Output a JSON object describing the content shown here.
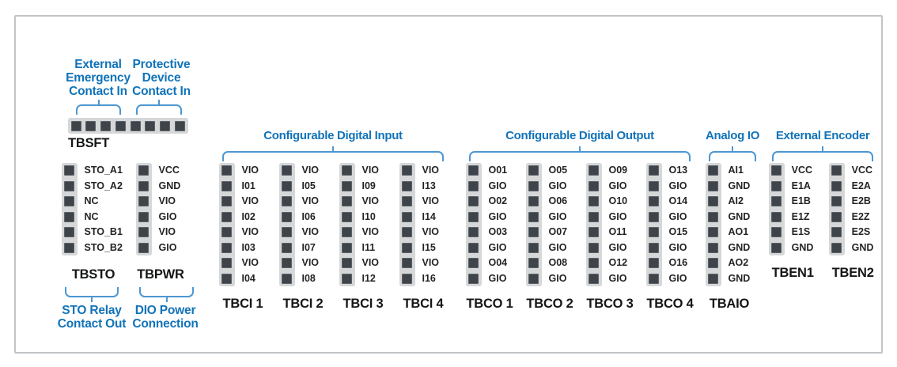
{
  "colors": {
    "accent_text": "#1173b9",
    "bracket": "#4e97d1",
    "pin": "#3e4449",
    "pin_border": "#5d6368",
    "strip": "#d6d7d8",
    "frame_border": "#c2c5c7",
    "name_text": "#141617"
  },
  "tbsft": {
    "name": "TBSFT",
    "pin_count": 8,
    "bracket_groups": [
      {
        "label": "External\nEmergency\nContact In"
      },
      {
        "label": "Protective\nDevice\nContact In"
      }
    ]
  },
  "side_blocks": [
    {
      "name": "TBSTO",
      "pins": [
        "STO_A1",
        "STO_A2",
        "NC",
        "NC",
        "STO_B1",
        "STO_B2"
      ],
      "bottom_label": "STO Relay\nContact Out"
    },
    {
      "name": "TBPWR",
      "pins": [
        "VCC",
        "GND",
        "VIO",
        "GIO",
        "VIO",
        "GIO"
      ],
      "bottom_label": "DIO Power\nConnection"
    }
  ],
  "groups": [
    {
      "title": "Configurable Digital Input",
      "blocks": [
        {
          "name": "TBCI 1",
          "pins": [
            "VIO",
            "I01",
            "VIO",
            "I02",
            "VIO",
            "I03",
            "VIO",
            "I04"
          ]
        },
        {
          "name": "TBCI 2",
          "pins": [
            "VIO",
            "I05",
            "VIO",
            "I06",
            "VIO",
            "I07",
            "VIO",
            "I08"
          ]
        },
        {
          "name": "TBCI 3",
          "pins": [
            "VIO",
            "I09",
            "VIO",
            "I10",
            "VIO",
            "I11",
            "VIO",
            "I12"
          ]
        },
        {
          "name": "TBCI 4",
          "pins": [
            "VIO",
            "I13",
            "VIO",
            "I14",
            "VIO",
            "I15",
            "VIO",
            "I16"
          ]
        }
      ]
    },
    {
      "title": "Configurable Digital Output",
      "blocks": [
        {
          "name": "TBCO 1",
          "pins": [
            "O01",
            "GIO",
            "O02",
            "GIO",
            "O03",
            "GIO",
            "O04",
            "GIO"
          ]
        },
        {
          "name": "TBCO 2",
          "pins": [
            "O05",
            "GIO",
            "O06",
            "GIO",
            "O07",
            "GIO",
            "O08",
            "GIO"
          ]
        },
        {
          "name": "TBCO 3",
          "pins": [
            "O09",
            "GIO",
            "O10",
            "GIO",
            "O11",
            "GIO",
            "O12",
            "GIO"
          ]
        },
        {
          "name": "TBCO 4",
          "pins": [
            "O13",
            "GIO",
            "O14",
            "GIO",
            "O15",
            "GIO",
            "O16",
            "GIO"
          ]
        }
      ]
    },
    {
      "title": "Analog IO",
      "blocks": [
        {
          "name": "TBAIO",
          "pins": [
            "AI1",
            "GND",
            "AI2",
            "GND",
            "AO1",
            "GND",
            "AO2",
            "GND"
          ]
        }
      ]
    },
    {
      "title": "External Encoder",
      "blocks": [
        {
          "name": "TBEN1",
          "pins": [
            "VCC",
            "E1A",
            "E1B",
            "E1Z",
            "E1S",
            "GND"
          ]
        },
        {
          "name": "TBEN2",
          "pins": [
            "VCC",
            "E2A",
            "E2B",
            "E2Z",
            "E2S",
            "GND"
          ]
        }
      ]
    }
  ]
}
